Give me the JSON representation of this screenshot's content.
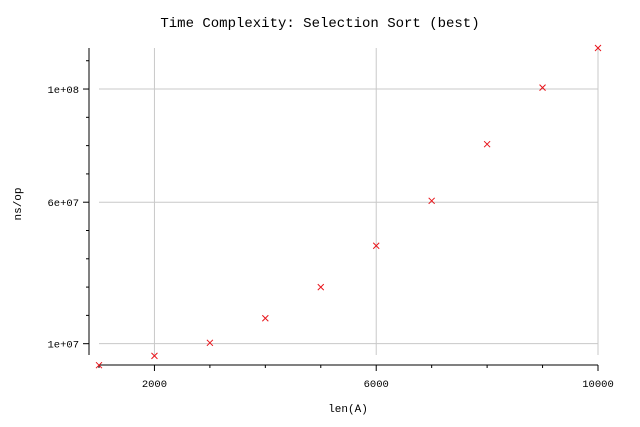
{
  "chart_data": {
    "type": "scatter",
    "title": "Time Complexity: Selection Sort (best)",
    "xlabel": "len(A)",
    "ylabel": "ns/op",
    "x": [
      1000,
      2000,
      3000,
      4000,
      5000,
      6000,
      7000,
      8000,
      9000,
      10000
    ],
    "y": [
      2400000,
      5700000,
      10300000,
      19000000,
      30000000,
      44600000,
      60500000,
      80500000,
      100500000,
      114500000
    ],
    "xlim": [
      1000,
      10000
    ],
    "ylim": [
      6000000,
      114500000
    ],
    "x_ticks": [
      2000,
      6000,
      10000
    ],
    "x_tick_labels": [
      "2000",
      "6000",
      "10000"
    ],
    "y_ticks": [
      10000000,
      60000000,
      100000000
    ],
    "y_tick_labels": [
      "1e+07",
      "6e+07",
      "1e+08"
    ],
    "grid": true,
    "marker": "x",
    "marker_color": "#e8151b"
  }
}
